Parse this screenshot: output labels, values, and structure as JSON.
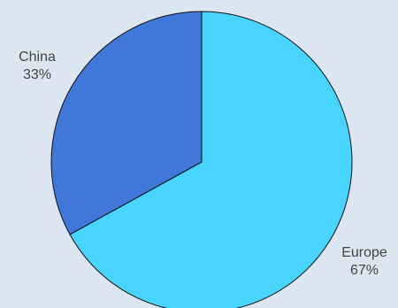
{
  "chart_data": {
    "type": "pie",
    "title": "",
    "labels": [
      "Europe",
      "China"
    ],
    "values": [
      67,
      33
    ],
    "value_labels": [
      "67%",
      "33%"
    ],
    "colors": [
      "#48d4ff",
      "#3f78d8"
    ],
    "start_angle_deg": 0,
    "direction": "clockwise",
    "legend": "none"
  }
}
